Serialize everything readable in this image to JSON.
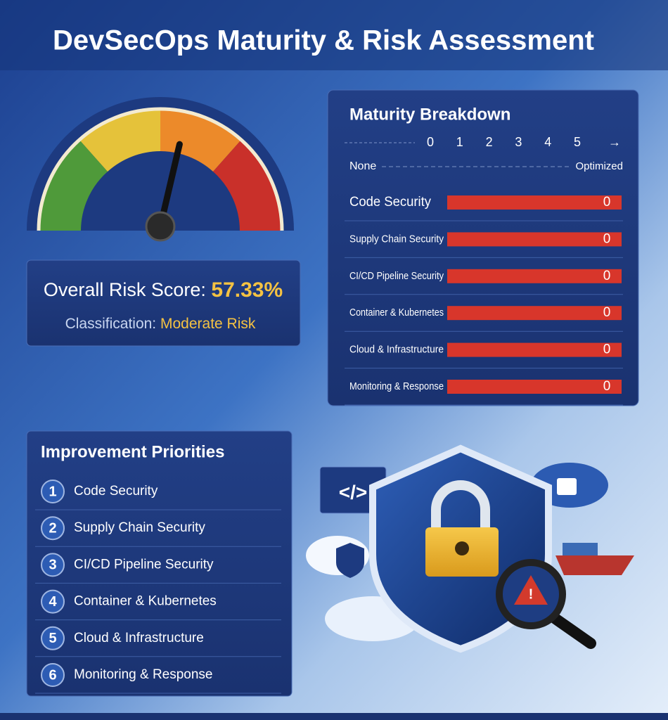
{
  "header": {
    "title": "DevSecOps Maturity & Risk Assessment"
  },
  "risk": {
    "range": [
      0,
      100
    ],
    "score_text": "Overall Risk Score:",
    "score": {
      "value": 57.33,
      "label": "57.33%"
    },
    "classification_text": "Classification:",
    "classification": "Moderate Risk"
  },
  "maturity": {
    "title": "Maturity Breakdown",
    "ticks": [
      0,
      1,
      2,
      3,
      4,
      5
    ],
    "min_label": "None",
    "max_label": "Optimized",
    "rows": [
      {
        "name": "Code Security",
        "value": 0
      },
      {
        "name": "Supply Chain Security",
        "value": 0
      },
      {
        "name": "CI/CD Pipeline Security",
        "value": 0
      },
      {
        "name": "Container & Kubernetes",
        "value": 0
      },
      {
        "name": "Cloud & Infrastructure",
        "value": 0
      },
      {
        "name": "Monitoring & Response",
        "value": 0
      }
    ]
  },
  "priorities": {
    "title": "Improvement Priorities",
    "items": [
      {
        "rank": 1,
        "label": "Code Security"
      },
      {
        "rank": 2,
        "label": "Supply Chain Security"
      },
      {
        "rank": 3,
        "label": "CI/CD Pipeline Security"
      },
      {
        "rank": 4,
        "label": "Container & Kubernetes"
      },
      {
        "rank": 5,
        "label": "Cloud & Infrastructure"
      },
      {
        "rank": 6,
        "label": "Monitoring & Response"
      }
    ]
  }
}
